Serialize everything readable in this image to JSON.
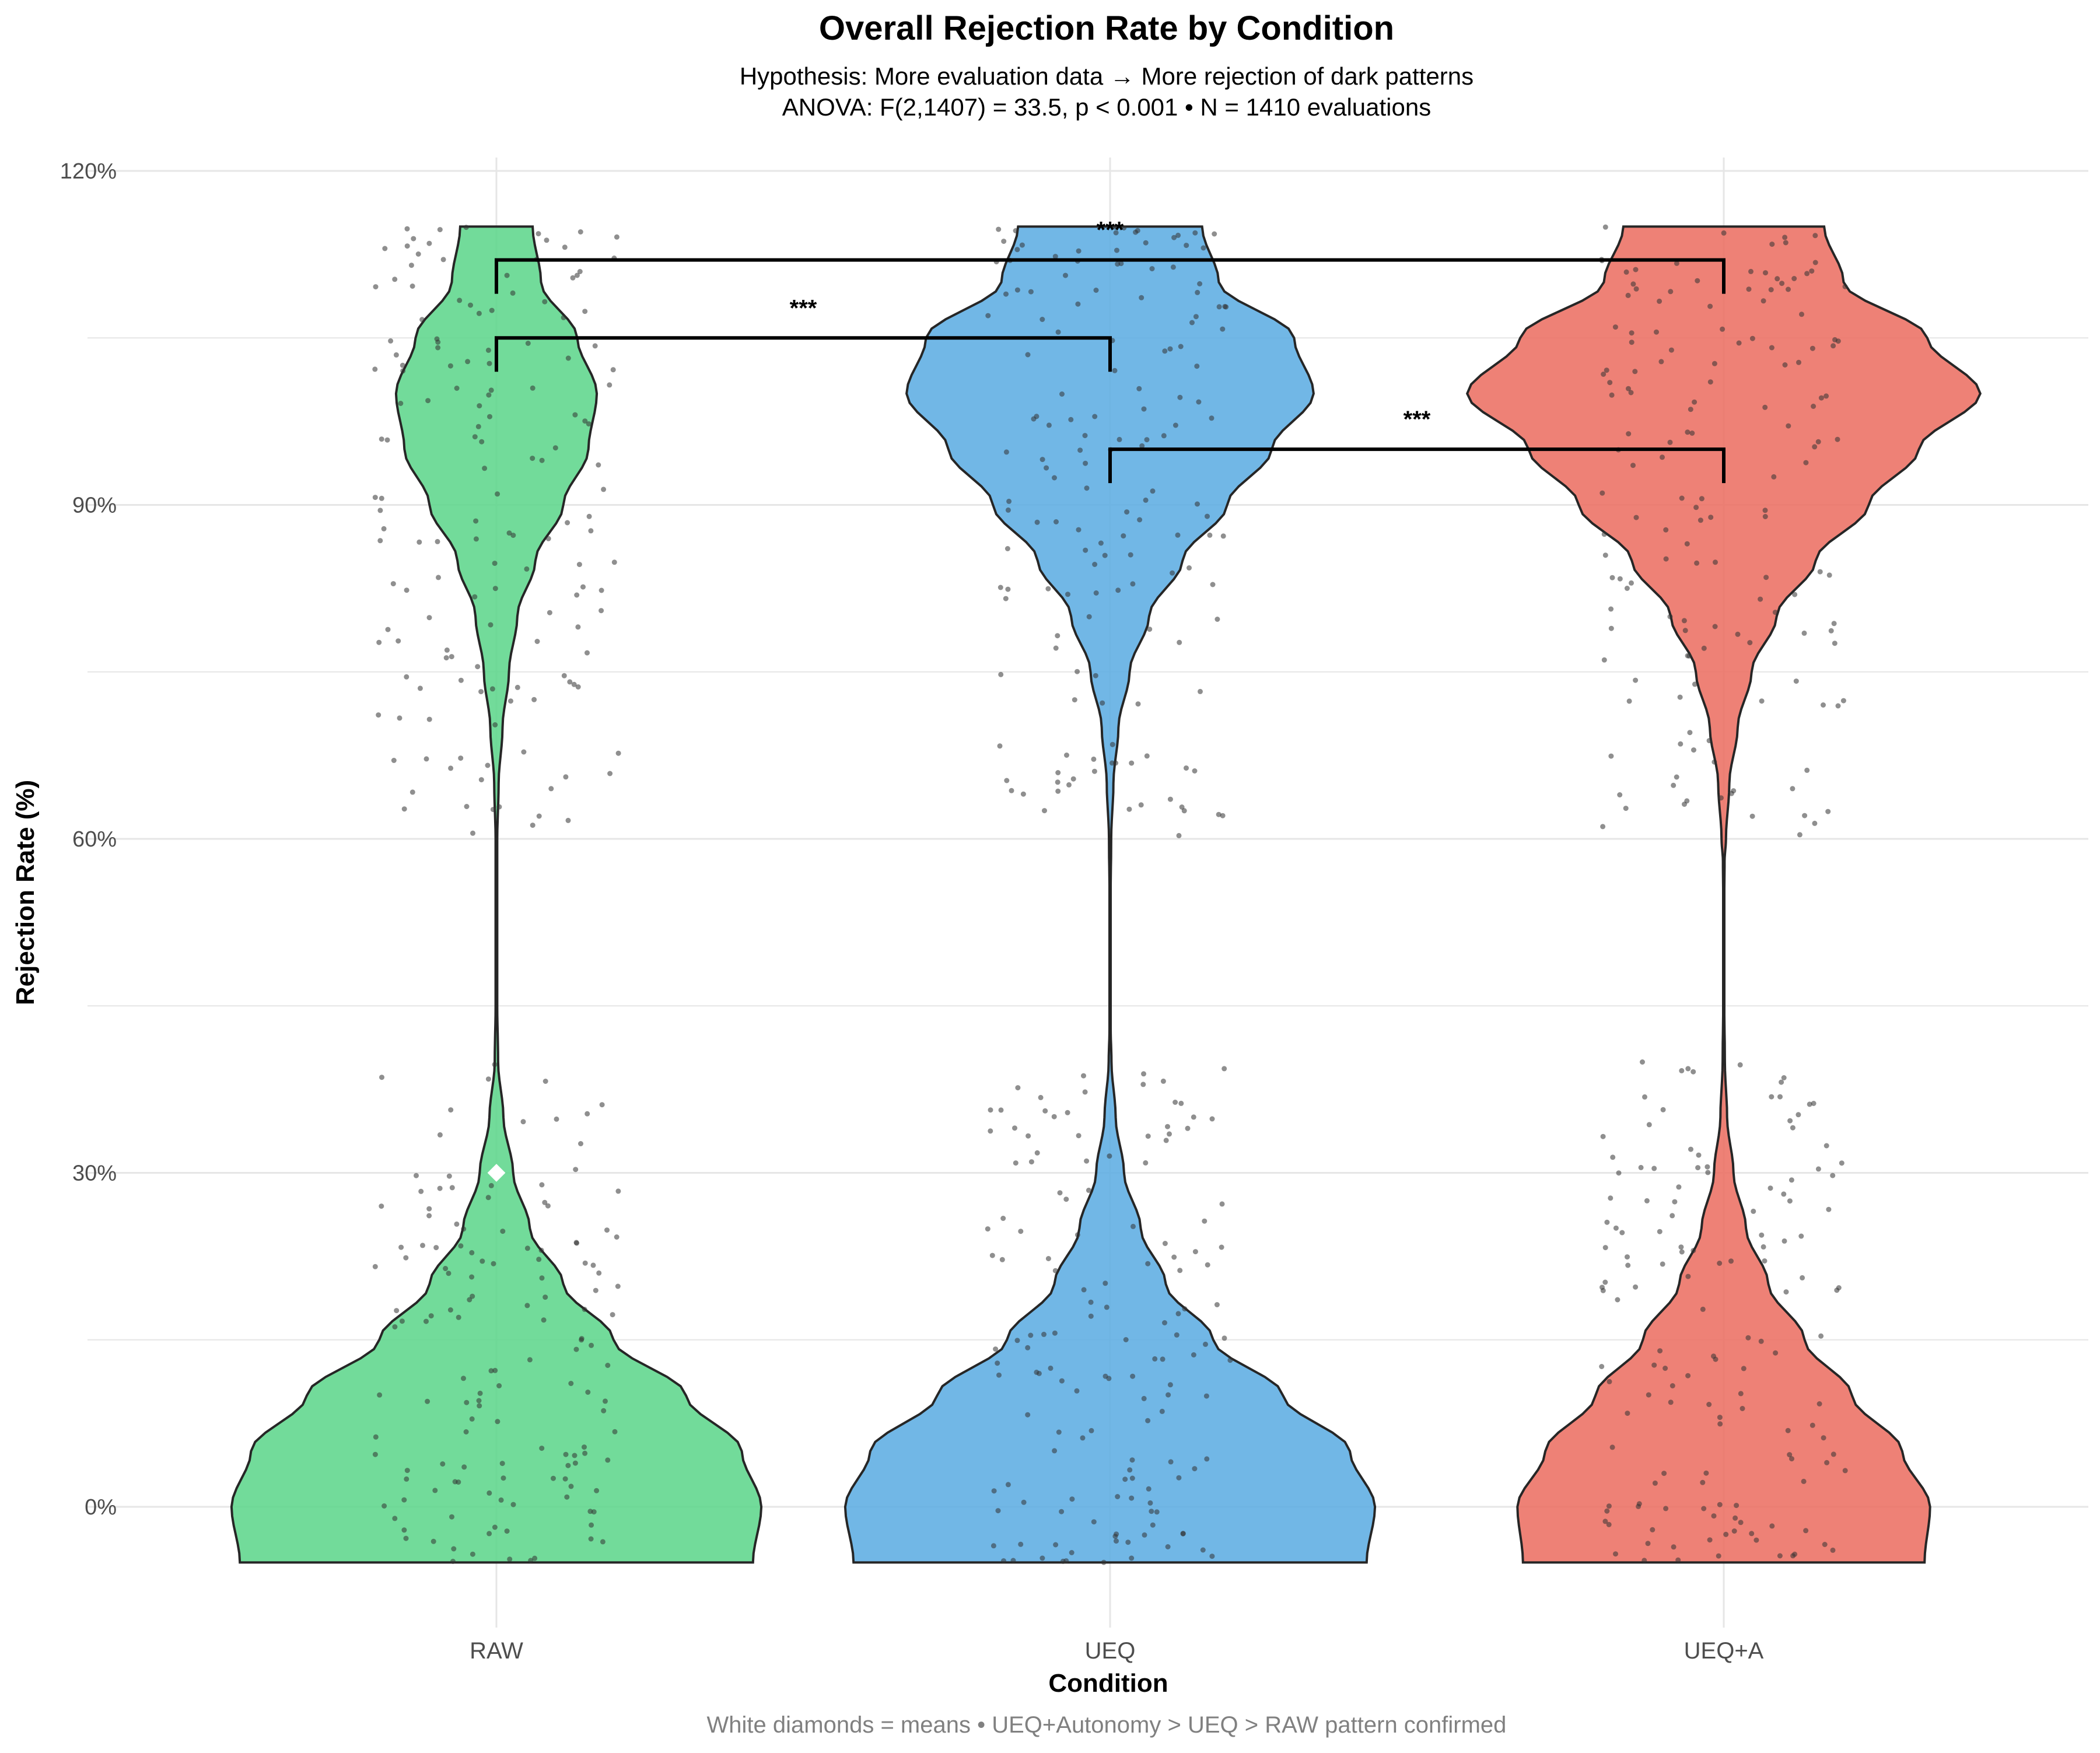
{
  "title": "Overall Rejection Rate by Condition",
  "subtitle_line1": "Hypothesis: More evaluation data → More rejection of dark patterns",
  "subtitle_line2": "ANOVA: F(2,1407) = 33.5, p < 0.001 • N = 1410 evaluations",
  "caption": "White diamonds = means • UEQ+Autonomy > UEQ > RAW pattern confirmed",
  "colors": {
    "RAW": "#5ed68c",
    "UEQ": "#5dade2",
    "UEQ+A": "#ec7063",
    "outline": "#262626",
    "points": "#333333",
    "grid": "#e6e6e6",
    "mean_marker": "#ffffff"
  },
  "chart_data": {
    "type": "violin",
    "xlabel": "Condition",
    "ylabel": "Rejection Rate (%)",
    "categories": [
      "RAW",
      "UEQ",
      "UEQ+A"
    ],
    "ylim": [
      -5,
      120
    ],
    "yticks": [
      0,
      30,
      60,
      90,
      120
    ],
    "ytick_labels": [
      "0%",
      "30%",
      "60%",
      "90%",
      "120%"
    ],
    "grid": true,
    "legend": "none",
    "series": [
      {
        "name": "RAW",
        "range": [
          -5,
          115
        ],
        "mean": 30,
        "density_half_width_pct": [
          [
            -5,
            92
          ],
          [
            0,
            95
          ],
          [
            5,
            88
          ],
          [
            10,
            68
          ],
          [
            15,
            42
          ],
          [
            20,
            24
          ],
          [
            25,
            12
          ],
          [
            30,
            6
          ],
          [
            35,
            2.5
          ],
          [
            40,
            0.6
          ],
          [
            45,
            0.3
          ],
          [
            50,
            0.3
          ],
          [
            55,
            0.3
          ],
          [
            60,
            0.3
          ],
          [
            65,
            0.8
          ],
          [
            70,
            2.2
          ],
          [
            75,
            4.5
          ],
          [
            80,
            7.5
          ],
          [
            85,
            14
          ],
          [
            90,
            24
          ],
          [
            95,
            33
          ],
          [
            100,
            36
          ],
          [
            105,
            29
          ],
          [
            110,
            16
          ],
          [
            115,
            13
          ]
        ]
      },
      {
        "name": "UEQ",
        "range": [
          -5,
          115
        ],
        "density_half_width_pct": [
          [
            -5,
            92
          ],
          [
            0,
            95
          ],
          [
            5,
            86
          ],
          [
            10,
            62
          ],
          [
            15,
            37
          ],
          [
            20,
            20
          ],
          [
            25,
            11
          ],
          [
            30,
            5
          ],
          [
            35,
            2
          ],
          [
            40,
            0.5
          ],
          [
            43,
            0.2
          ],
          [
            47,
            0.2
          ],
          [
            50,
            0.2
          ],
          [
            55,
            0.2
          ],
          [
            60,
            0.4
          ],
          [
            65,
            1.2
          ],
          [
            70,
            3
          ],
          [
            75,
            7
          ],
          [
            80,
            14
          ],
          [
            85,
            26
          ],
          [
            90,
            42
          ],
          [
            95,
            58
          ],
          [
            100,
            73
          ],
          [
            105,
            66
          ],
          [
            110,
            39
          ],
          [
            115,
            33
          ]
        ]
      },
      {
        "name": "UEQ+A",
        "range": [
          -5,
          115
        ],
        "density_half_width_pct": [
          [
            -5,
            72
          ],
          [
            0,
            74
          ],
          [
            5,
            64
          ],
          [
            10,
            46
          ],
          [
            15,
            29
          ],
          [
            20,
            16
          ],
          [
            25,
            8
          ],
          [
            30,
            3.5
          ],
          [
            35,
            1.2
          ],
          [
            40,
            0.4
          ],
          [
            45,
            0.2
          ],
          [
            50,
            0.2
          ],
          [
            55,
            0.2
          ],
          [
            58,
            0.3
          ],
          [
            60,
            0.8
          ],
          [
            65,
            2
          ],
          [
            70,
            5
          ],
          [
            75,
            10
          ],
          [
            80,
            19
          ],
          [
            85,
            33
          ],
          [
            90,
            52
          ],
          [
            95,
            70
          ],
          [
            100,
            92
          ],
          [
            105,
            73
          ],
          [
            110,
            43
          ],
          [
            115,
            36
          ]
        ]
      }
    ],
    "comparisons": [
      {
        "from": "RAW",
        "to": "UEQ",
        "y": 105,
        "label": "***"
      },
      {
        "from": "RAW",
        "to": "UEQ+A",
        "y": 112,
        "label": "***"
      },
      {
        "from": "UEQ",
        "to": "UEQ+A",
        "y": 95,
        "label": "***"
      }
    ]
  }
}
